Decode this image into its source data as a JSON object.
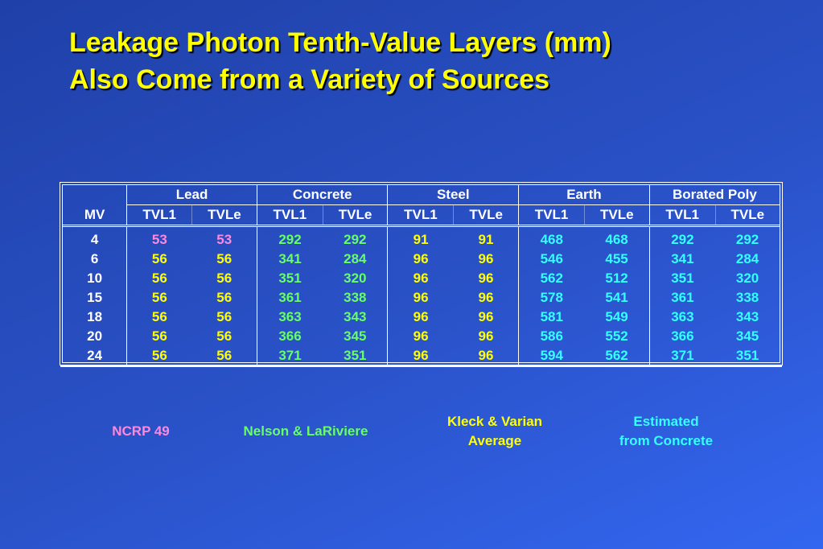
{
  "title": {
    "line1": "Leakage Photon Tenth-Value Layers (mm)",
    "line2": "Also Come from a Variety of Sources"
  },
  "table": {
    "mv_header": "MV",
    "materials": [
      {
        "name": "Lead"
      },
      {
        "name": "Concrete"
      },
      {
        "name": "Steel"
      },
      {
        "name": "Earth"
      },
      {
        "name": "Borated Poly"
      }
    ],
    "sub_headers": [
      "TVL1",
      "TVLe"
    ],
    "rows": [
      {
        "mv": "4",
        "lead": [
          "53",
          "53"
        ],
        "concrete": [
          "292",
          "292"
        ],
        "steel": [
          "91",
          "91"
        ],
        "earth": [
          "468",
          "468"
        ],
        "poly": [
          "292",
          "292"
        ]
      },
      {
        "mv": "6",
        "lead": [
          "56",
          "56"
        ],
        "concrete": [
          "341",
          "284"
        ],
        "steel": [
          "96",
          "96"
        ],
        "earth": [
          "546",
          "455"
        ],
        "poly": [
          "341",
          "284"
        ]
      },
      {
        "mv": "10",
        "lead": [
          "56",
          "56"
        ],
        "concrete": [
          "351",
          "320"
        ],
        "steel": [
          "96",
          "96"
        ],
        "earth": [
          "562",
          "512"
        ],
        "poly": [
          "351",
          "320"
        ]
      },
      {
        "mv": "15",
        "lead": [
          "56",
          "56"
        ],
        "concrete": [
          "361",
          "338"
        ],
        "steel": [
          "96",
          "96"
        ],
        "earth": [
          "578",
          "541"
        ],
        "poly": [
          "361",
          "338"
        ]
      },
      {
        "mv": "18",
        "lead": [
          "56",
          "56"
        ],
        "concrete": [
          "363",
          "343"
        ],
        "steel": [
          "96",
          "96"
        ],
        "earth": [
          "581",
          "549"
        ],
        "poly": [
          "363",
          "343"
        ]
      },
      {
        "mv": "20",
        "lead": [
          "56",
          "56"
        ],
        "concrete": [
          "366",
          "345"
        ],
        "steel": [
          "96",
          "96"
        ],
        "earth": [
          "586",
          "552"
        ],
        "poly": [
          "366",
          "345"
        ]
      },
      {
        "mv": "24",
        "lead": [
          "56",
          "56"
        ],
        "concrete": [
          "371",
          "351"
        ],
        "steel": [
          "96",
          "96"
        ],
        "earth": [
          "594",
          "562"
        ],
        "poly": [
          "371",
          "351"
        ]
      }
    ]
  },
  "legend": {
    "ncrp": "NCRP 49",
    "nelson": "Nelson & LaRiviere",
    "kleck_line1": "Kleck & Varian",
    "kleck_line2": "Average",
    "estimated_line1": "Estimated",
    "estimated_line2": "from Concrete"
  },
  "colors": {
    "title": "#ffff00",
    "ncrp": "#ff88dd",
    "nelson": "#66ff66",
    "kleck": "#ffff00",
    "estimated": "#33ffff",
    "background": "#2a52c8"
  }
}
